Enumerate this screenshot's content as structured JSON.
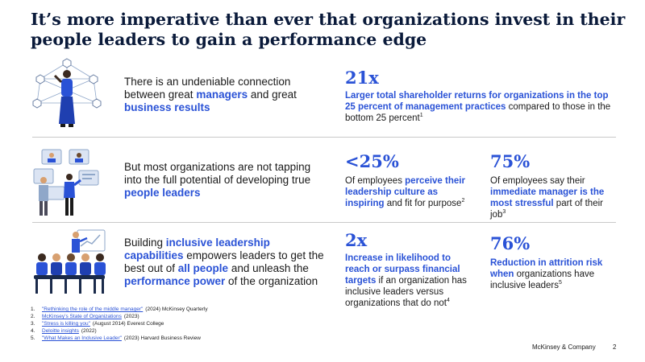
{
  "title": "It’s more imperative than ever that organizations invest in their people leaders to gain a performance edge",
  "rows": [
    {
      "statement": [
        {
          "t": "There is an undeniable connection between great ",
          "hl": false
        },
        {
          "t": "managers",
          "hl": true
        },
        {
          "t": " and great ",
          "hl": false
        },
        {
          "t": "business results",
          "hl": true
        }
      ],
      "stats": [
        {
          "value": "21x",
          "desc": [
            {
              "t": "Larger total shareholder returns for organizations in the top 25 percent of management practices",
              "hl": true
            },
            {
              "t": " compared to those in the bottom 25 percent",
              "hl": false
            }
          ],
          "sup": "1"
        }
      ]
    },
    {
      "statement": [
        {
          "t": "But most organizations are not tapping into the full potential of developing true ",
          "hl": false
        },
        {
          "t": "people leaders",
          "hl": true
        }
      ],
      "stats": [
        {
          "value": "<25%",
          "desc": [
            {
              "t": "Of employees ",
              "hl": false
            },
            {
              "t": "perceive their leadership culture as inspiring",
              "hl": true
            },
            {
              "t": " and fit for purpose",
              "hl": false
            }
          ],
          "sup": "2"
        },
        {
          "value": "75%",
          "desc": [
            {
              "t": "Of employees say their ",
              "hl": false
            },
            {
              "t": "immediate manager is the most stressful",
              "hl": true
            },
            {
              "t": " part of their job",
              "hl": false
            }
          ],
          "sup": "3"
        }
      ]
    },
    {
      "statement": [
        {
          "t": "Building ",
          "hl": false
        },
        {
          "t": "inclusive leadership capabilities",
          "hl": true
        },
        {
          "t": " empowers leaders to get the best out of ",
          "hl": false
        },
        {
          "t": "all people",
          "hl": true
        },
        {
          "t": " and unleash the ",
          "hl": false
        },
        {
          "t": "performance power",
          "hl": true
        },
        {
          "t": " of the organization",
          "hl": false
        }
      ],
      "stats": [
        {
          "value": "2x",
          "desc": [
            {
              "t": "Increase in likelihood to reach or surpass financial targets",
              "hl": true
            },
            {
              "t": " if an organization has inclusive leaders versus organizations that do not",
              "hl": false
            }
          ],
          "sup": "4"
        },
        {
          "value": "76%",
          "desc": [
            {
              "t": "Reduction in attrition risk when",
              "hl": true
            },
            {
              "t": " organizations have inclusive leaders",
              "hl": false
            }
          ],
          "sup": "5"
        }
      ]
    }
  ],
  "footnotes": [
    {
      "num": "1.",
      "link": "\"Rethinking the role of the middle manager\"",
      "rest": "(2024) McKinsey Quarterly"
    },
    {
      "num": "2.",
      "link": "McKinsey’s State of Organizations",
      "rest": "(2023)"
    },
    {
      "num": "3.",
      "link": "\"Stress is killing you\"",
      "rest": "(August 2014) Everest College"
    },
    {
      "num": "4.",
      "link": "Deloitte insights",
      "rest": "(2022)"
    },
    {
      "num": "5.",
      "link": "\"What Makes an Inclusive Leader\"",
      "rest": "(2023) Harvard Business Review"
    }
  ],
  "footer": {
    "brand": "McKinsey & Company",
    "page": "2"
  },
  "colors": {
    "accent": "#2a52d6",
    "title": "#0a1a3a"
  }
}
